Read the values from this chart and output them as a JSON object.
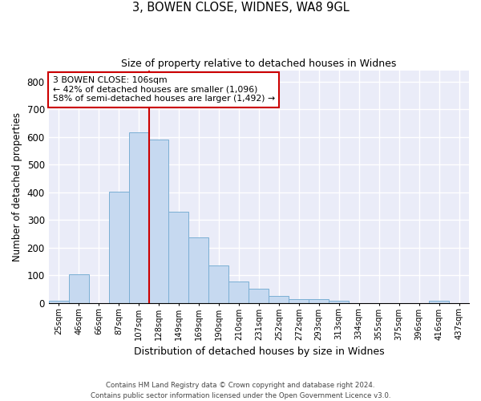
{
  "title1": "3, BOWEN CLOSE, WIDNES, WA8 9GL",
  "title2": "Size of property relative to detached houses in Widnes",
  "xlabel": "Distribution of detached houses by size in Widnes",
  "ylabel": "Number of detached properties",
  "footer1": "Contains HM Land Registry data © Crown copyright and database right 2024.",
  "footer2": "Contains public sector information licensed under the Open Government Licence v3.0.",
  "bar_labels": [
    "25sqm",
    "46sqm",
    "66sqm",
    "87sqm",
    "107sqm",
    "128sqm",
    "149sqm",
    "169sqm",
    "190sqm",
    "210sqm",
    "231sqm",
    "252sqm",
    "272sqm",
    "293sqm",
    "313sqm",
    "334sqm",
    "355sqm",
    "375sqm",
    "396sqm",
    "416sqm",
    "437sqm"
  ],
  "bar_values": [
    8,
    105,
    0,
    402,
    617,
    591,
    330,
    238,
    135,
    78,
    50,
    25,
    15,
    15,
    8,
    0,
    0,
    0,
    0,
    8,
    0
  ],
  "bar_color": "#c6d9f0",
  "bar_edge_color": "#7bafd4",
  "bg_color": "#eaecf8",
  "grid_color": "#ffffff",
  "vline_color": "#cc0000",
  "vline_x_index": 4,
  "annotation_title": "3 BOWEN CLOSE: 106sqm",
  "annotation_line2": "← 42% of detached houses are smaller (1,096)",
  "annotation_line3": "58% of semi-detached houses are larger (1,492) →",
  "annotation_box_color": "#cc0000",
  "ylim": [
    0,
    840
  ],
  "yticks": [
    0,
    100,
    200,
    300,
    400,
    500,
    600,
    700,
    800
  ]
}
